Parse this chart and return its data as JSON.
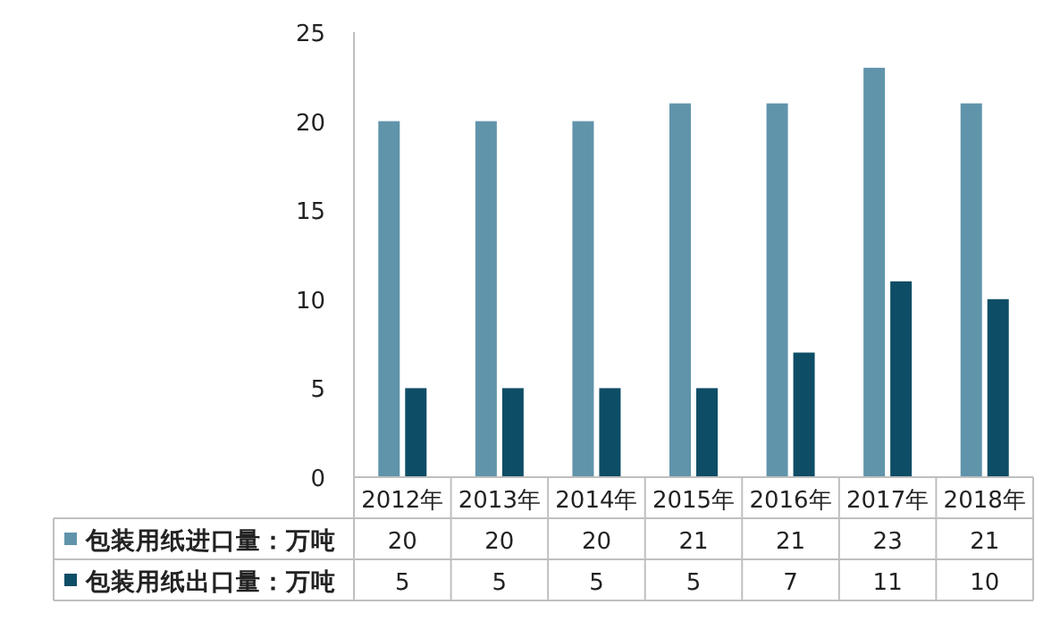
{
  "chart_data": {
    "type": "bar",
    "categories": [
      "2012年",
      "2013年",
      "2014年",
      "2015年",
      "2016年",
      "2017年",
      "2018年"
    ],
    "series": [
      {
        "name": "包装用纸进口量：万吨",
        "color": "#6094ab",
        "values": [
          20,
          20,
          20,
          21,
          21,
          23,
          21
        ]
      },
      {
        "name": "包装用纸出口量：万吨",
        "color": "#0e4d66",
        "values": [
          5,
          5,
          5,
          5,
          7,
          11,
          10
        ]
      }
    ],
    "ylim": [
      0,
      25
    ],
    "yticks": [
      0,
      5,
      10,
      15,
      20,
      25
    ],
    "data_labels": true,
    "legend": "bottom"
  }
}
